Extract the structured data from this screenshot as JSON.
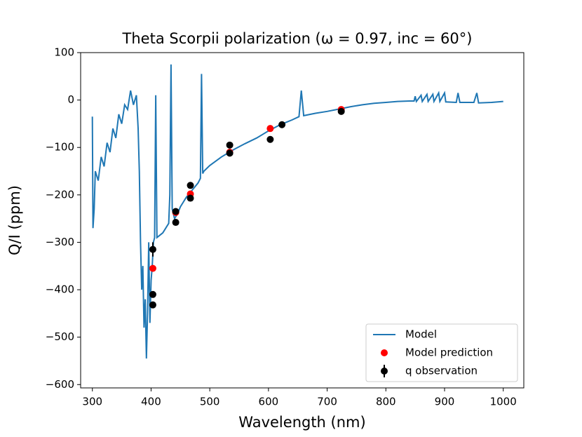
{
  "chart_data": {
    "type": "line",
    "title": "Theta Scorpii polarization (ω = 0.97, inc = 60°)",
    "xlabel": "Wavelength (nm)",
    "ylabel": "Q/I (ppm)",
    "xlim": [
      280,
      1035
    ],
    "ylim": [
      -607,
      100
    ],
    "xticks": [
      300,
      400,
      500,
      600,
      700,
      800,
      900,
      1000
    ],
    "yticks": [
      {
        "value": -600,
        "label": "−600"
      },
      {
        "value": -500,
        "label": "−500"
      },
      {
        "value": -400,
        "label": "−400"
      },
      {
        "value": -300,
        "label": "−300"
      },
      {
        "value": -200,
        "label": "−200"
      },
      {
        "value": -100,
        "label": "−100"
      },
      0,
      100
    ],
    "legend": "lower right",
    "series": [
      {
        "name": "Model",
        "type": "line",
        "color": "#1f77b4",
        "x": [
          300,
          301,
          303,
          305,
          310,
          315,
          320,
          325,
          330,
          335,
          340,
          345,
          350,
          355,
          360,
          365,
          370,
          375,
          378,
          380,
          382,
          384,
          386,
          388,
          390,
          392,
          394,
          396,
          398,
          400,
          402,
          404,
          406,
          408,
          410,
          415,
          420,
          425,
          430,
          432,
          434,
          436,
          440,
          445,
          450,
          455,
          460,
          470,
          480,
          484,
          486,
          488,
          490,
          500,
          520,
          540,
          560,
          580,
          600,
          620,
          640,
          652,
          656,
          660,
          680,
          700,
          720,
          740,
          760,
          780,
          800,
          820,
          840,
          848,
          850,
          852,
          860,
          862,
          870,
          872,
          880,
          882,
          890,
          892,
          900,
          902,
          920,
          923,
          926,
          950,
          955,
          958,
          980,
          1000
        ],
        "values": [
          -35,
          -270,
          -230,
          -150,
          -170,
          -120,
          -140,
          -90,
          -110,
          -60,
          -80,
          -30,
          -50,
          -10,
          -20,
          20,
          -10,
          10,
          -60,
          -150,
          -300,
          -400,
          -350,
          -480,
          -420,
          -545,
          -450,
          -300,
          -470,
          -380,
          -350,
          -300,
          -290,
          10,
          -290,
          -285,
          -280,
          -270,
          -260,
          -200,
          75,
          -230,
          -250,
          -240,
          -225,
          -215,
          -205,
          -190,
          -175,
          -165,
          55,
          -155,
          -150,
          -138,
          -120,
          -105,
          -92,
          -80,
          -65,
          -52,
          -42,
          -35,
          20,
          -33,
          -28,
          -24,
          -19,
          -14,
          -10,
          -7,
          -5,
          -3,
          -2,
          -2,
          8,
          -3,
          10,
          -3,
          12,
          -3,
          12,
          -3,
          15,
          -3,
          15,
          -4,
          -5,
          15,
          -5,
          -5,
          15,
          -6,
          -5,
          -3
        ]
      },
      {
        "name": "Model prediction",
        "type": "scatter",
        "color": "#ff0000",
        "x": [
          403,
          442,
          467,
          534,
          603,
          724
        ],
        "values": [
          -355,
          -237,
          -198,
          -110,
          -60,
          -20
        ]
      },
      {
        "name": "q observation",
        "type": "errorbar",
        "color": "#000000",
        "x": [
          403,
          403,
          403,
          442,
          442,
          467,
          467,
          534,
          534,
          603,
          623,
          724
        ],
        "values": [
          -315,
          -410,
          -432,
          -235,
          -258,
          -180,
          -207,
          -95,
          -112,
          -83,
          -52,
          -24
        ],
        "errors": [
          15,
          5,
          5,
          5,
          5,
          5,
          5,
          5,
          5,
          5,
          5,
          5
        ]
      }
    ]
  }
}
